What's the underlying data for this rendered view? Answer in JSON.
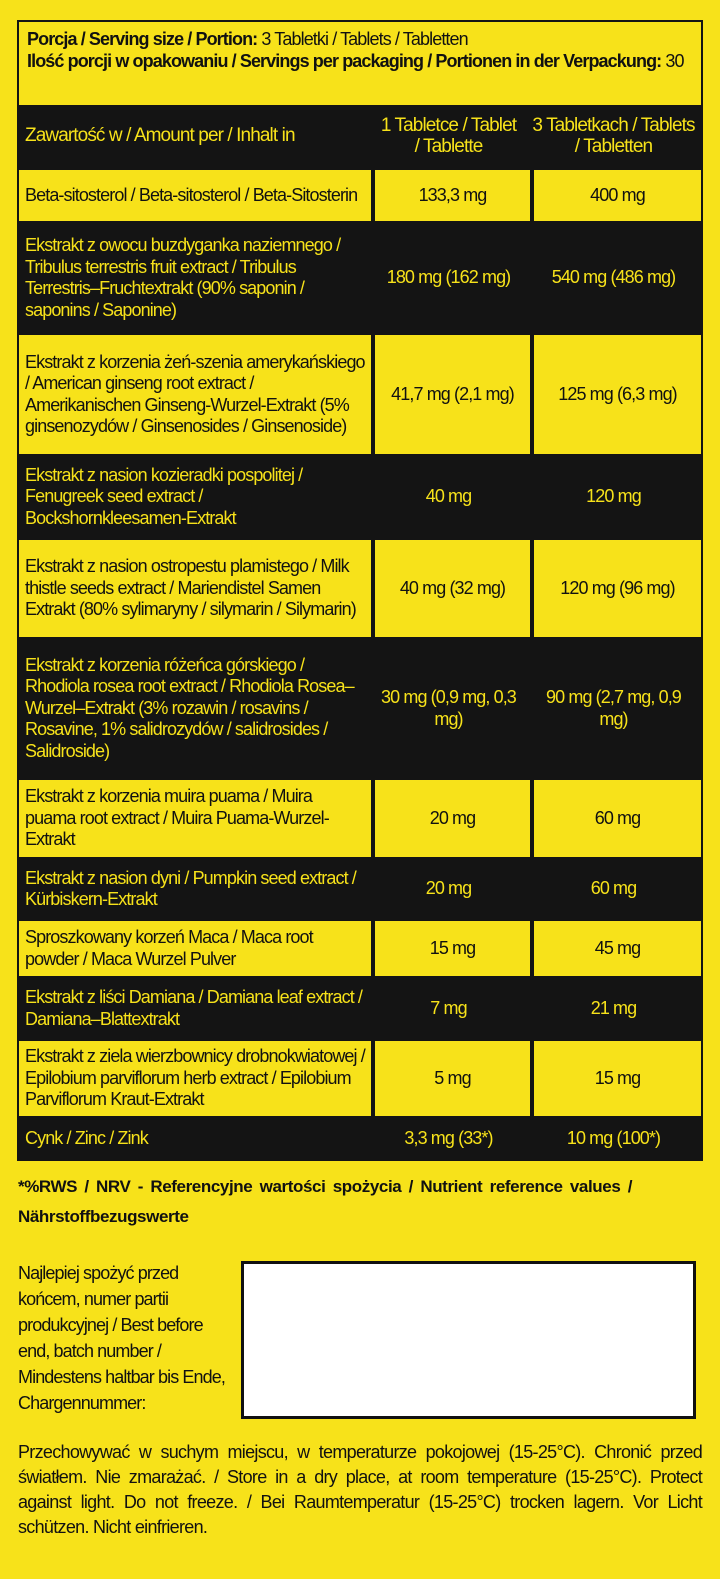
{
  "serving": {
    "size_label": "Porcja / Serving size / Portion:",
    "size_value": "3 Tabletki / Tablets / Tabletten",
    "count_label": "Ilość porcji w opakowaniu / Servings per packaging / Portionen in der Verpackung:",
    "count_value": "30"
  },
  "header": {
    "col1": "Zawartość w / Amount per / Inhalt in",
    "col2": "1 Tabletce / Tablet / Tablette",
    "col3": "3 Tabletkach / Tablets / Tabletten"
  },
  "rows": [
    {
      "name": "Beta-sitosterol / Beta-sitosterol / Beta-Sitosterin",
      "per1": "133,3 mg",
      "per3": "400 mg"
    },
    {
      "name": "Ekstrakt z owocu buzdyganka naziemnego / Tribulus terrestris fruit extract / Tribulus Terrestris–Fruchtextrakt (90% saponin / saponins / Saponine)",
      "per1": "180 mg (162 mg)",
      "per3": "540 mg (486 mg)"
    },
    {
      "name": "Ekstrakt z korzenia żeń-szenia amerykańskiego / American ginseng root extract / Amerikanischen Ginseng-Wurzel-Extrakt (5% ginsenozydów / Ginsenosides / Ginsenoside)",
      "per1": "41,7 mg (2,1 mg)",
      "per3": "125 mg (6,3 mg)"
    },
    {
      "name": "Ekstrakt z nasion kozieradki pospolitej / Fenugreek seed extract / Bockshornkleesamen-Extrakt",
      "per1": "40 mg",
      "per3": "120 mg"
    },
    {
      "name": "Ekstrakt z nasion ostropestu plamistego / Milk thistle seeds extract / Mariendistel Samen Extrakt (80% sylimaryny / silymarin / Silymarin)",
      "per1": "40 mg (32 mg)",
      "per3": "120 mg (96 mg)"
    },
    {
      "name": "Ekstrakt z korzenia różeńca górskiego / Rhodiola rosea root extract / Rhodiola Rosea–Wurzel–Extrakt (3% rozawin / rosavins / Rosavine, 1% salidrozydów / salidrosides / Salidroside)",
      "per1": "30 mg (0,9 mg, 0,3 mg)",
      "per3": "90 mg (2,7 mg, 0,9 mg)"
    },
    {
      "name": "Ekstrakt z korzenia muira puama / Muira puama root extract / Muira Puama-Wurzel-Extrakt",
      "per1": "20 mg",
      "per3": "60 mg"
    },
    {
      "name": "Ekstrakt z nasion dyni / Pumpkin seed extract / Kürbiskern-Extrakt",
      "per1": "20 mg",
      "per3": "60 mg"
    },
    {
      "name": "Sproszkowany korzeń Maca / Maca root powder / Maca Wurzel Pulver",
      "per1": "15 mg",
      "per3": "45 mg"
    },
    {
      "name": "Ekstrakt z liści Damiana / Damiana leaf extract / Damiana–Blattextrakt",
      "per1": "7 mg",
      "per3": "21 mg"
    },
    {
      "name": "Ekstrakt z ziela wierzbownicy drobnokwiatowej / Epilobium parviflorum herb extract / Epilobium Parviflorum Kraut-Extrakt",
      "per1": "5 mg",
      "per3": "15 mg"
    },
    {
      "name": "Cynk / Zinc / Zink",
      "per1": "3,3 mg (33*)",
      "per3": "10 mg (100*)"
    }
  ],
  "footnote": "*%RWS / NRV - Referencyjne wartości spożycia / Nutrient reference values / Nährstoffbezugswerte",
  "best_before": "Najlepiej spożyć przed końcem, numer partii produkcyjnej / Best before end, batch number / Mindestens haltbar bis Ende, Chargennummer:",
  "storage": "Przechowywać w suchym miejscu, w temperaturze pokojowej (15-25°C). Chronić przed światłem. Nie zmarażać. / Store in a dry place, at room temperature (15-25°C). Protect against light. Do not freeze. / Bei Raumtemperatur (15-25°C) trocken lagern. Vor Licht schützen. Nicht einfrieren.",
  "colors": {
    "label_yellow": "#f7e21a",
    "black": "#141414"
  }
}
